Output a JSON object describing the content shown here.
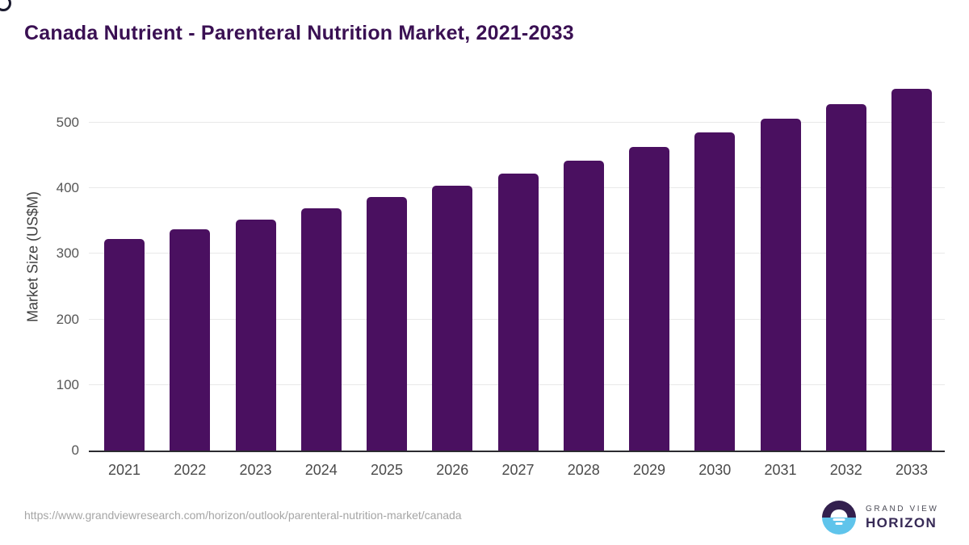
{
  "title": "Canada Nutrient - Parenteral Nutrition Market, 2021-2033",
  "chart_data": {
    "type": "bar",
    "title": "Canada Nutrient - Parenteral Nutrition Market, 2021-2033",
    "categories": [
      "2021",
      "2022",
      "2023",
      "2024",
      "2025",
      "2026",
      "2027",
      "2028",
      "2029",
      "2030",
      "2031",
      "2032",
      "2033"
    ],
    "values": [
      322,
      337,
      352,
      369,
      386,
      404,
      422,
      442,
      463,
      485,
      506,
      528,
      552
    ],
    "xlabel": "",
    "ylabel": "Market Size (US$M)",
    "ylim": [
      0,
      564
    ],
    "yticks": [
      0,
      100,
      200,
      300,
      400,
      500
    ],
    "grid": true,
    "legend": "none",
    "bar_color": "#4a1060"
  },
  "colors": {
    "title_text": "#3a1053",
    "bar": "#4a1060",
    "gridline": "#e9e9e9",
    "axis_line": "#2b2b30",
    "tick_text": "#565656",
    "url_text": "#a5a5a5",
    "logo_purple": "#33204e",
    "logo_blue": "#5fc4eb",
    "logo_wordmark": "#372a56"
  },
  "footer": {
    "source_url": "https://www.grandviewresearch.com/horizon/outlook/parenteral-nutrition-market/canada",
    "logo_line1": "GRAND VIEW",
    "logo_line2": "HORIZON"
  }
}
